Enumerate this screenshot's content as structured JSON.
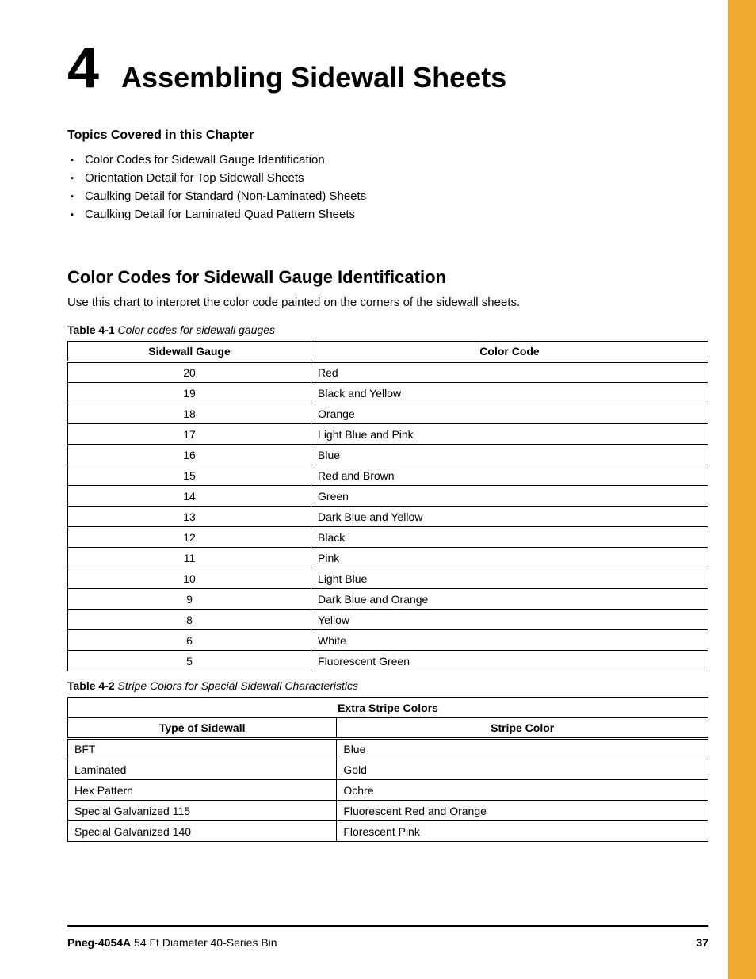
{
  "accent_color": "#f0a92e",
  "chapter": {
    "number": "4",
    "title": "Assembling Sidewall Sheets"
  },
  "topics": {
    "heading": "Topics Covered in this Chapter",
    "items": [
      "Color Codes for Sidewall Gauge Identification",
      "Orientation Detail for Top Sidewall Sheets",
      "Caulking Detail for Standard (Non-Laminated) Sheets",
      "Caulking Detail for Laminated Quad Pattern Sheets"
    ]
  },
  "section": {
    "heading": "Color Codes for Sidewall Gauge Identification",
    "intro": "Use this chart to interpret the color code painted on the corners of the sidewall sheets."
  },
  "table1": {
    "caption_label": "Table 4-1",
    "caption_text": "Color codes for sidewall gauges",
    "columns": [
      "Sidewall Gauge",
      "Color Code"
    ],
    "rows": [
      [
        "20",
        "Red"
      ],
      [
        "19",
        "Black and Yellow"
      ],
      [
        "18",
        "Orange"
      ],
      [
        "17",
        "Light Blue and Pink"
      ],
      [
        "16",
        "Blue"
      ],
      [
        "15",
        "Red and Brown"
      ],
      [
        "14",
        "Green"
      ],
      [
        "13",
        "Dark Blue and Yellow"
      ],
      [
        "12",
        "Black"
      ],
      [
        "11",
        "Pink"
      ],
      [
        "10",
        "Light Blue"
      ],
      [
        "9",
        "Dark Blue and Orange"
      ],
      [
        "8",
        "Yellow"
      ],
      [
        "6",
        "White"
      ],
      [
        "5",
        "Fluorescent Green"
      ]
    ]
  },
  "table2": {
    "caption_label": "Table 4-2",
    "caption_text": "Stripe Colors for Special Sidewall Characteristics",
    "super_header": "Extra Stripe Colors",
    "columns": [
      "Type of Sidewall",
      "Stripe Color"
    ],
    "rows": [
      [
        "BFT",
        "Blue"
      ],
      [
        "Laminated",
        "Gold"
      ],
      [
        "Hex Pattern",
        "Ochre"
      ],
      [
        "Special Galvanized 115",
        "Fluorescent Red and Orange"
      ],
      [
        "Special Galvanized 140",
        "Florescent Pink"
      ]
    ]
  },
  "footer": {
    "doc_id": "Pneg-4054A",
    "doc_desc": "54 Ft Diameter 40-Series Bin",
    "page": "37"
  }
}
